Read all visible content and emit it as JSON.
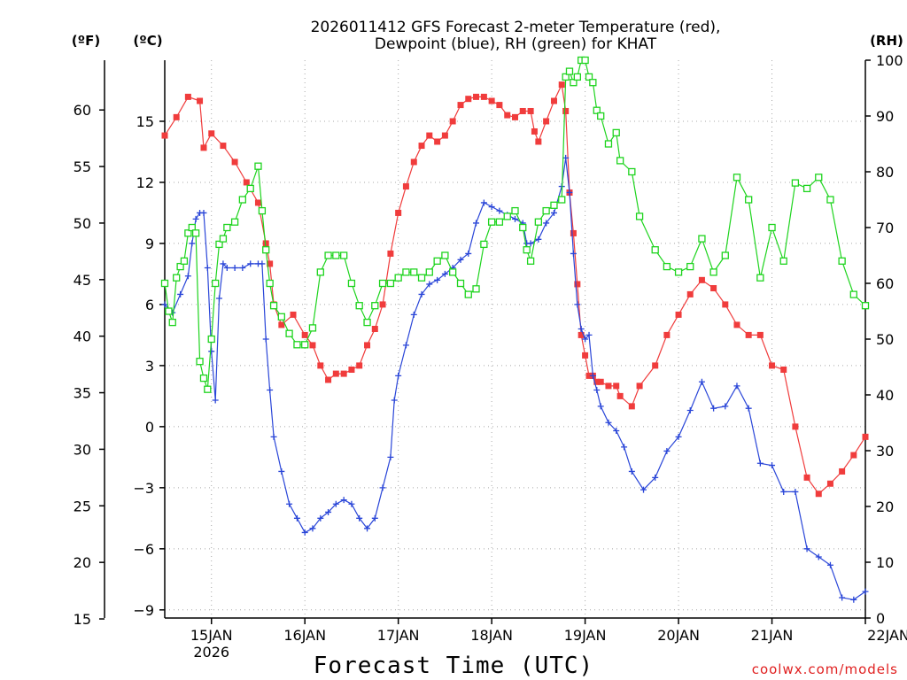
{
  "chart_data": {
    "type": "line",
    "title_line1": "2026011412 GFS Forecast 2-meter Temperature (red),",
    "title_line2": "Dewpoint (blue), RH (green) for KHAT",
    "xlabel": "Forecast Time (UTC)",
    "credit": "coolwx.com/models",
    "units": {
      "fahrenheit": "(ºF)",
      "celsius": "(ºC)",
      "rh": "(RH)"
    },
    "x_range_days": [
      14.5,
      22.0
    ],
    "celsius_range": [
      -9.4,
      18.0
    ],
    "fahrenheit_ticks": [
      "15",
      "20",
      "25",
      "30",
      "35",
      "40",
      "45",
      "50",
      "55",
      "60"
    ],
    "celsius_ticks": [
      "-9",
      "-6",
      "-3",
      "0",
      "3",
      "6",
      "9",
      "12",
      "15"
    ],
    "rh_range": [
      0,
      100
    ],
    "rh_ticks": [
      "0",
      "10",
      "20",
      "30",
      "40",
      "50",
      "60",
      "70",
      "80",
      "90",
      "100"
    ],
    "x_ticks": [
      {
        "day": 15,
        "label": "15JAN"
      },
      {
        "day": 16,
        "label": "16JAN"
      },
      {
        "day": 17,
        "label": "17JAN"
      },
      {
        "day": 18,
        "label": "18JAN"
      },
      {
        "day": 19,
        "label": "19JAN"
      },
      {
        "day": 20,
        "label": "20JAN"
      },
      {
        "day": 21,
        "label": "21JAN"
      },
      {
        "day": 22,
        "label": "22JAN"
      }
    ],
    "x_subtick_label": "2026",
    "series": [
      {
        "name": "Temperature",
        "units": "C",
        "color": "#f03c3c",
        "marker": "filled-square",
        "points": [
          [
            14.5,
            14.3
          ],
          [
            14.625,
            15.2
          ],
          [
            14.75,
            16.2
          ],
          [
            14.875,
            16.0
          ],
          [
            14.917,
            13.7
          ],
          [
            15.0,
            14.4
          ],
          [
            15.125,
            13.8
          ],
          [
            15.25,
            13.0
          ],
          [
            15.375,
            12.0
          ],
          [
            15.5,
            11.0
          ],
          [
            15.583,
            9.0
          ],
          [
            15.625,
            8.0
          ],
          [
            15.667,
            6.0
          ],
          [
            15.75,
            5.0
          ],
          [
            15.875,
            5.5
          ],
          [
            16.0,
            4.5
          ],
          [
            16.083,
            4.0
          ],
          [
            16.167,
            3.0
          ],
          [
            16.25,
            2.3
          ],
          [
            16.333,
            2.6
          ],
          [
            16.417,
            2.6
          ],
          [
            16.5,
            2.8
          ],
          [
            16.583,
            3.0
          ],
          [
            16.667,
            4.0
          ],
          [
            16.75,
            4.8
          ],
          [
            16.833,
            6.0
          ],
          [
            16.917,
            8.5
          ],
          [
            17.0,
            10.5
          ],
          [
            17.083,
            11.8
          ],
          [
            17.167,
            13.0
          ],
          [
            17.25,
            13.8
          ],
          [
            17.333,
            14.3
          ],
          [
            17.417,
            14.0
          ],
          [
            17.5,
            14.3
          ],
          [
            17.583,
            15.0
          ],
          [
            17.667,
            15.8
          ],
          [
            17.75,
            16.1
          ],
          [
            17.833,
            16.2
          ],
          [
            17.917,
            16.2
          ],
          [
            18.0,
            16.0
          ],
          [
            18.083,
            15.8
          ],
          [
            18.167,
            15.3
          ],
          [
            18.25,
            15.2
          ],
          [
            18.333,
            15.5
          ],
          [
            18.417,
            15.5
          ],
          [
            18.458,
            14.5
          ],
          [
            18.5,
            14.0
          ],
          [
            18.583,
            15.0
          ],
          [
            18.667,
            16.0
          ],
          [
            18.75,
            16.8
          ],
          [
            18.792,
            15.5
          ],
          [
            18.833,
            11.5
          ],
          [
            18.875,
            9.5
          ],
          [
            18.917,
            7.0
          ],
          [
            18.958,
            4.5
          ],
          [
            19.0,
            3.5
          ],
          [
            19.042,
            2.5
          ],
          [
            19.083,
            2.5
          ],
          [
            19.125,
            2.2
          ],
          [
            19.167,
            2.2
          ],
          [
            19.25,
            2.0
          ],
          [
            19.333,
            2.0
          ],
          [
            19.375,
            1.5
          ],
          [
            19.5,
            1.0
          ],
          [
            19.583,
            2.0
          ],
          [
            19.75,
            3.0
          ],
          [
            19.875,
            4.5
          ],
          [
            20.0,
            5.5
          ],
          [
            20.125,
            6.5
          ],
          [
            20.25,
            7.2
          ],
          [
            20.375,
            6.8
          ],
          [
            20.5,
            6.0
          ],
          [
            20.625,
            5.0
          ],
          [
            20.75,
            4.5
          ],
          [
            20.875,
            4.5
          ],
          [
            21.0,
            3.0
          ],
          [
            21.125,
            2.8
          ],
          [
            21.25,
            0.0
          ],
          [
            21.375,
            -2.5
          ],
          [
            21.5,
            -3.3
          ],
          [
            21.625,
            -2.8
          ],
          [
            21.75,
            -2.2
          ],
          [
            21.875,
            -1.4
          ],
          [
            22.0,
            -0.5
          ]
        ]
      },
      {
        "name": "Dewpoint",
        "units": "C",
        "color": "#2a46d8",
        "marker": "plus",
        "points": [
          [
            14.5,
            6.0
          ],
          [
            14.583,
            5.6
          ],
          [
            14.667,
            6.5
          ],
          [
            14.75,
            7.4
          ],
          [
            14.792,
            9.0
          ],
          [
            14.833,
            10.2
          ],
          [
            14.875,
            10.5
          ],
          [
            14.917,
            10.5
          ],
          [
            14.958,
            7.8
          ],
          [
            15.0,
            3.7
          ],
          [
            15.042,
            1.3
          ],
          [
            15.083,
            6.3
          ],
          [
            15.125,
            8.0
          ],
          [
            15.167,
            7.8
          ],
          [
            15.25,
            7.8
          ],
          [
            15.333,
            7.8
          ],
          [
            15.417,
            8.0
          ],
          [
            15.5,
            8.0
          ],
          [
            15.542,
            8.0
          ],
          [
            15.583,
            4.3
          ],
          [
            15.625,
            1.8
          ],
          [
            15.667,
            -0.5
          ],
          [
            15.75,
            -2.2
          ],
          [
            15.833,
            -3.8
          ],
          [
            15.917,
            -4.5
          ],
          [
            16.0,
            -5.2
          ],
          [
            16.083,
            -5.0
          ],
          [
            16.167,
            -4.5
          ],
          [
            16.25,
            -4.2
          ],
          [
            16.333,
            -3.8
          ],
          [
            16.417,
            -3.6
          ],
          [
            16.5,
            -3.8
          ],
          [
            16.583,
            -4.5
          ],
          [
            16.667,
            -5.0
          ],
          [
            16.75,
            -4.5
          ],
          [
            16.833,
            -3.0
          ],
          [
            16.917,
            -1.5
          ],
          [
            16.958,
            1.3
          ],
          [
            17.0,
            2.5
          ],
          [
            17.083,
            4.0
          ],
          [
            17.167,
            5.5
          ],
          [
            17.25,
            6.5
          ],
          [
            17.333,
            7.0
          ],
          [
            17.417,
            7.2
          ],
          [
            17.5,
            7.5
          ],
          [
            17.583,
            7.8
          ],
          [
            17.667,
            8.2
          ],
          [
            17.75,
            8.5
          ],
          [
            17.833,
            10.0
          ],
          [
            17.917,
            11.0
          ],
          [
            18.0,
            10.8
          ],
          [
            18.083,
            10.6
          ],
          [
            18.167,
            10.4
          ],
          [
            18.25,
            10.2
          ],
          [
            18.333,
            10.0
          ],
          [
            18.375,
            9.0
          ],
          [
            18.417,
            9.0
          ],
          [
            18.5,
            9.2
          ],
          [
            18.583,
            10.0
          ],
          [
            18.667,
            10.5
          ],
          [
            18.75,
            11.8
          ],
          [
            18.792,
            13.2
          ],
          [
            18.833,
            11.5
          ],
          [
            18.875,
            8.5
          ],
          [
            18.917,
            6.0
          ],
          [
            18.958,
            4.8
          ],
          [
            19.0,
            4.3
          ],
          [
            19.042,
            4.5
          ],
          [
            19.083,
            2.5
          ],
          [
            19.125,
            1.8
          ],
          [
            19.167,
            1.0
          ],
          [
            19.25,
            0.2
          ],
          [
            19.333,
            -0.2
          ],
          [
            19.417,
            -1.0
          ],
          [
            19.5,
            -2.2
          ],
          [
            19.625,
            -3.1
          ],
          [
            19.75,
            -2.5
          ],
          [
            19.875,
            -1.2
          ],
          [
            20.0,
            -0.5
          ],
          [
            20.125,
            0.8
          ],
          [
            20.25,
            2.2
          ],
          [
            20.375,
            0.9
          ],
          [
            20.5,
            1.0
          ],
          [
            20.625,
            2.0
          ],
          [
            20.75,
            0.9
          ],
          [
            20.875,
            -1.8
          ],
          [
            21.0,
            -1.9
          ],
          [
            21.125,
            -3.2
          ],
          [
            21.25,
            -3.2
          ],
          [
            21.375,
            -6.0
          ],
          [
            21.5,
            -6.4
          ],
          [
            21.625,
            -6.8
          ],
          [
            21.75,
            -8.4
          ],
          [
            21.875,
            -8.5
          ],
          [
            22.0,
            -8.1
          ]
        ]
      },
      {
        "name": "RH",
        "units": "%",
        "color": "#1ed41e",
        "marker": "open-square",
        "points": [
          [
            14.5,
            60
          ],
          [
            14.542,
            55
          ],
          [
            14.583,
            53
          ],
          [
            14.625,
            61
          ],
          [
            14.667,
            63
          ],
          [
            14.708,
            64
          ],
          [
            14.75,
            69
          ],
          [
            14.792,
            70
          ],
          [
            14.833,
            69
          ],
          [
            14.875,
            46
          ],
          [
            14.917,
            43
          ],
          [
            14.958,
            41
          ],
          [
            15.0,
            50
          ],
          [
            15.042,
            60
          ],
          [
            15.083,
            67
          ],
          [
            15.125,
            68
          ],
          [
            15.167,
            70
          ],
          [
            15.25,
            71
          ],
          [
            15.333,
            75
          ],
          [
            15.417,
            77
          ],
          [
            15.5,
            81
          ],
          [
            15.542,
            73
          ],
          [
            15.583,
            66
          ],
          [
            15.625,
            60
          ],
          [
            15.667,
            56
          ],
          [
            15.75,
            54
          ],
          [
            15.833,
            51
          ],
          [
            15.917,
            49
          ],
          [
            16.0,
            49
          ],
          [
            16.083,
            52
          ],
          [
            16.167,
            62
          ],
          [
            16.25,
            65
          ],
          [
            16.333,
            65
          ],
          [
            16.417,
            65
          ],
          [
            16.5,
            60
          ],
          [
            16.583,
            56
          ],
          [
            16.667,
            53
          ],
          [
            16.75,
            56
          ],
          [
            16.833,
            60
          ],
          [
            16.917,
            60
          ],
          [
            17.0,
            61
          ],
          [
            17.083,
            62
          ],
          [
            17.167,
            62
          ],
          [
            17.25,
            61
          ],
          [
            17.333,
            62
          ],
          [
            17.417,
            64
          ],
          [
            17.5,
            65
          ],
          [
            17.583,
            62
          ],
          [
            17.667,
            60
          ],
          [
            17.75,
            58
          ],
          [
            17.833,
            59
          ],
          [
            17.917,
            67
          ],
          [
            18.0,
            71
          ],
          [
            18.083,
            71
          ],
          [
            18.167,
            72
          ],
          [
            18.25,
            73
          ],
          [
            18.333,
            70
          ],
          [
            18.375,
            66
          ],
          [
            18.417,
            64
          ],
          [
            18.5,
            71
          ],
          [
            18.583,
            73
          ],
          [
            18.667,
            74
          ],
          [
            18.75,
            75
          ],
          [
            18.792,
            97
          ],
          [
            18.833,
            98
          ],
          [
            18.875,
            96
          ],
          [
            18.917,
            97
          ],
          [
            18.958,
            100
          ],
          [
            19.0,
            100
          ],
          [
            19.042,
            97
          ],
          [
            19.083,
            96
          ],
          [
            19.125,
            91
          ],
          [
            19.167,
            90
          ],
          [
            19.25,
            85
          ],
          [
            19.333,
            87
          ],
          [
            19.375,
            82
          ],
          [
            19.5,
            80
          ],
          [
            19.583,
            72
          ],
          [
            19.75,
            66
          ],
          [
            19.875,
            63
          ],
          [
            20.0,
            62
          ],
          [
            20.125,
            63
          ],
          [
            20.25,
            68
          ],
          [
            20.375,
            62
          ],
          [
            20.5,
            65
          ],
          [
            20.625,
            79
          ],
          [
            20.75,
            75
          ],
          [
            20.875,
            61
          ],
          [
            21.0,
            70
          ],
          [
            21.125,
            64
          ],
          [
            21.25,
            78
          ],
          [
            21.375,
            77
          ],
          [
            21.5,
            79
          ],
          [
            21.625,
            75
          ],
          [
            21.75,
            64
          ],
          [
            21.875,
            58
          ],
          [
            22.0,
            56
          ]
        ]
      }
    ]
  }
}
